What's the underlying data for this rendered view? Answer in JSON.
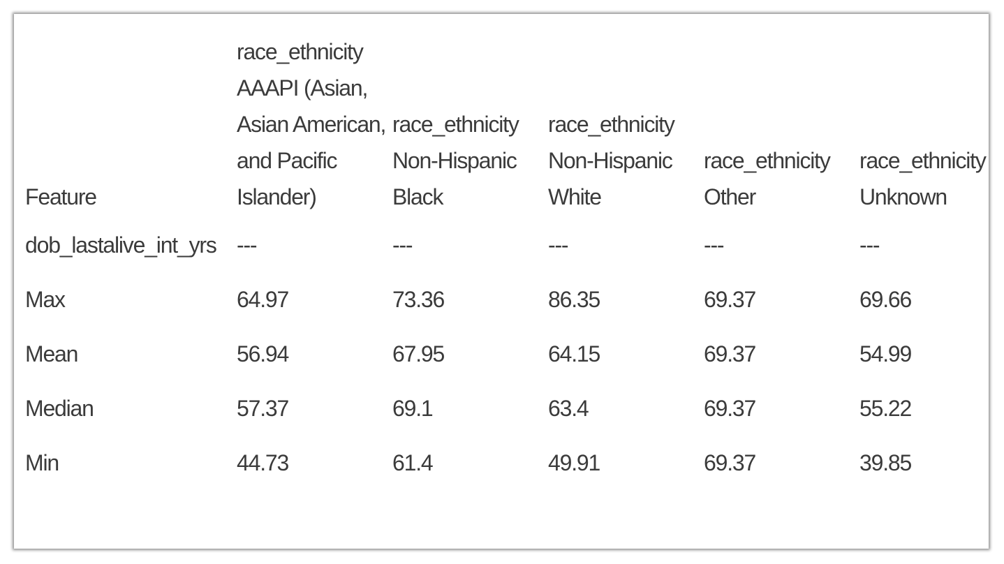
{
  "table": {
    "headers": [
      "Feature",
      "race_ethnicity AAAPI (Asian, Asian American, and Pacific Islander)",
      "race_ethnicity Non-Hispanic Black",
      "race_ethnicity Non-Hispanic White",
      "race_ethnicity Other",
      "race_ethnicity Unknown"
    ],
    "rows": [
      [
        "dob_lastalive_int_yrs",
        "---",
        "---",
        "---",
        "---",
        "---"
      ],
      [
        "Max",
        "64.97",
        "73.36",
        "86.35",
        "69.37",
        "69.66"
      ],
      [
        "Mean",
        "56.94",
        "67.95",
        "64.15",
        "69.37",
        "54.99"
      ],
      [
        "Median",
        "57.37",
        "69.1",
        "63.4",
        "69.37",
        "55.22"
      ],
      [
        "Min",
        "44.73",
        "61.4",
        "49.91",
        "69.37",
        "39.85"
      ]
    ]
  }
}
